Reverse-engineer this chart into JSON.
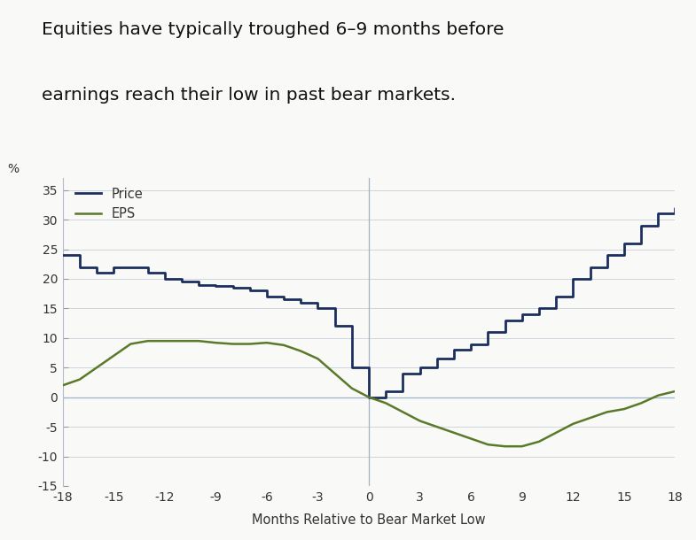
{
  "title_line1": "Equities have typically troughed 6–9 months before",
  "title_line2": "earnings reach their low in past bear markets.",
  "xlabel": "Months Relative to Bear Market Low",
  "ylabel": "%",
  "xlim": [
    -18,
    18
  ],
  "ylim": [
    -15,
    37
  ],
  "xticks": [
    -18,
    -15,
    -12,
    -9,
    -6,
    -3,
    0,
    3,
    6,
    9,
    12,
    15,
    18
  ],
  "yticks": [
    -15,
    -10,
    -5,
    0,
    5,
    10,
    15,
    20,
    25,
    30,
    35
  ],
  "price_color": "#1b2f5e",
  "eps_color": "#5a7a2a",
  "background_color": "#f9f9f7",
  "grid_color": "#c8d0d8",
  "ref_line_color": "#a0b4c8",
  "price_x": [
    -18,
    -17,
    -16,
    -15,
    -14,
    -13,
    -12,
    -11,
    -10,
    -9,
    -8,
    -7,
    -6,
    -5,
    -4,
    -3,
    -2,
    -1,
    0,
    1,
    2,
    3,
    4,
    5,
    6,
    7,
    8,
    9,
    10,
    11,
    12,
    13,
    14,
    15,
    16,
    17,
    18
  ],
  "price_y": [
    24,
    22,
    21,
    22,
    22,
    21,
    20,
    19.5,
    19,
    18.8,
    18.5,
    18,
    17,
    16.5,
    16,
    15,
    12,
    5,
    0,
    1,
    4,
    5,
    6.5,
    8,
    9,
    11,
    13,
    14,
    15,
    17,
    20,
    22,
    24,
    26,
    29,
    31,
    32
  ],
  "eps_x": [
    -18,
    -17,
    -16,
    -15,
    -14,
    -13,
    -12,
    -11,
    -10,
    -9,
    -8,
    -7,
    -6,
    -5,
    -4,
    -3,
    -2,
    -1,
    0,
    1,
    2,
    3,
    4,
    5,
    6,
    7,
    8,
    9,
    10,
    11,
    12,
    13,
    14,
    15,
    16,
    17,
    18
  ],
  "eps_y": [
    2,
    3,
    5,
    7,
    9,
    9.5,
    9.5,
    9.5,
    9.5,
    9.2,
    9.0,
    9.0,
    9.2,
    8.8,
    7.8,
    6.5,
    4.0,
    1.5,
    0,
    -1,
    -2.5,
    -4,
    -5,
    -6,
    -7,
    -8,
    -8.3,
    -8.3,
    -7.5,
    -6,
    -4.5,
    -3.5,
    -2.5,
    -2.0,
    -1.0,
    0.3,
    1.0
  ]
}
